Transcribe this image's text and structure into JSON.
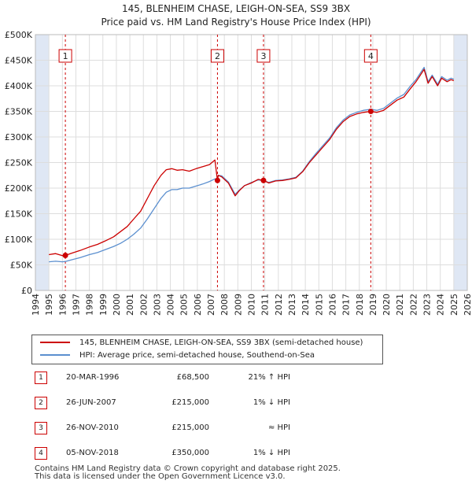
{
  "title_line1": "145, BLENHEIM CHASE, LEIGH-ON-SEA, SS9 3BX",
  "title_line2": "Price paid vs. HM Land Registry's House Price Index (HPI)",
  "legend": {
    "property": "145, BLENHEIM CHASE, LEIGH-ON-SEA, SS9 3BX (semi-detached house)",
    "hpi": "HPI: Average price, semi-detached house, Southend-on-Sea"
  },
  "colors": {
    "property": "#cc0000",
    "hpi": "#5b8fcf",
    "grid": "#dddddd",
    "shade": "#dfe7f4",
    "marker_line": "#cc0000"
  },
  "sales": [
    {
      "num": "1",
      "date": "20-MAR-1996",
      "price": "£68,500",
      "hpi": "21% ↑ HPI"
    },
    {
      "num": "2",
      "date": "26-JUN-2007",
      "price": "£215,000",
      "hpi": "1% ↓ HPI"
    },
    {
      "num": "3",
      "date": "26-NOV-2010",
      "price": "£215,000",
      "hpi": "≈ HPI"
    },
    {
      "num": "4",
      "date": "05-NOV-2018",
      "price": "£350,000",
      "hpi": "1% ↓ HPI"
    }
  ],
  "footer_line1": "Contains HM Land Registry data © Crown copyright and database right 2025.",
  "footer_line2": "This data is licensed under the Open Government Licence v3.0.",
  "chart_data": {
    "type": "line",
    "title": "145, BLENHEIM CHASE, LEIGH-ON-SEA, SS9 3BX — Price paid vs. HM Land Registry's House Price Index (HPI)",
    "xlabel": "",
    "ylabel": "",
    "xlim": [
      1994,
      2026
    ],
    "ylim": [
      0,
      500000
    ],
    "x_ticks": [
      "1994",
      "1995",
      "1996",
      "1997",
      "1998",
      "1999",
      "2000",
      "2001",
      "2002",
      "2003",
      "2004",
      "2005",
      "2006",
      "2007",
      "2008",
      "2009",
      "2010",
      "2011",
      "2012",
      "2013",
      "2014",
      "2015",
      "2016",
      "2017",
      "2018",
      "2019",
      "2020",
      "2021",
      "2022",
      "2023",
      "2024",
      "2025",
      "2026"
    ],
    "y_ticks": [
      {
        "value": 0,
        "label": "£0"
      },
      {
        "value": 50000,
        "label": "£50K"
      },
      {
        "value": 100000,
        "label": "£100K"
      },
      {
        "value": 150000,
        "label": "£150K"
      },
      {
        "value": 200000,
        "label": "£200K"
      },
      {
        "value": 250000,
        "label": "£250K"
      },
      {
        "value": 300000,
        "label": "£300K"
      },
      {
        "value": 350000,
        "label": "£350K"
      },
      {
        "value": 400000,
        "label": "£400K"
      },
      {
        "value": 450000,
        "label": "£450K"
      },
      {
        "value": 500000,
        "label": "£500K"
      }
    ],
    "grid": true,
    "shaded_ranges": [
      [
        1994,
        1995.0
      ],
      [
        2025.0,
        2026
      ]
    ],
    "sale_markers": [
      {
        "label": "1",
        "x": 1996.22,
        "y": 68500
      },
      {
        "label": "2",
        "x": 2007.49,
        "y": 215000
      },
      {
        "label": "3",
        "x": 2010.9,
        "y": 215000
      },
      {
        "label": "4",
        "x": 2018.85,
        "y": 350000
      }
    ],
    "series": [
      {
        "name": "145, BLENHEIM CHASE, LEIGH-ON-SEA, SS9 3BX (semi-detached house)",
        "color": "#cc0000",
        "x": [
          1995.0,
          1995.5,
          1996.0,
          1996.22,
          1996.7,
          1997.3,
          1998.0,
          1998.6,
          1999.2,
          1999.8,
          2000.3,
          2000.8,
          2001.3,
          2001.8,
          2002.3,
          2002.8,
          2003.3,
          2003.7,
          2004.1,
          2004.5,
          2004.9,
          2005.4,
          2005.9,
          2006.4,
          2006.9,
          2007.3,
          2007.49,
          2007.55,
          2007.8,
          2008.3,
          2008.8,
          2009.1,
          2009.5,
          2010.0,
          2010.5,
          2010.9,
          2011.3,
          2011.8,
          2012.3,
          2012.8,
          2013.3,
          2013.8,
          2014.3,
          2014.8,
          2015.3,
          2015.8,
          2016.3,
          2016.8,
          2017.3,
          2017.8,
          2018.3,
          2018.85,
          2019.3,
          2019.8,
          2020.3,
          2020.8,
          2021.3,
          2021.8,
          2022.2,
          2022.5,
          2022.8,
          2023.1,
          2023.4,
          2023.8,
          2024.1,
          2024.5,
          2024.8,
          2025.0
        ],
        "values": [
          70000,
          72000,
          68000,
          68500,
          73000,
          78000,
          85000,
          90000,
          97000,
          105000,
          115000,
          125000,
          140000,
          155000,
          180000,
          205000,
          225000,
          236000,
          238000,
          235000,
          236000,
          233000,
          238000,
          242000,
          246000,
          255000,
          215000,
          225000,
          222000,
          210000,
          185000,
          195000,
          205000,
          210000,
          217000,
          215000,
          210000,
          214000,
          215000,
          217000,
          220000,
          232000,
          250000,
          265000,
          280000,
          295000,
          315000,
          330000,
          340000,
          345000,
          348000,
          350000,
          348000,
          352000,
          362000,
          372000,
          378000,
          395000,
          408000,
          420000,
          432000,
          405000,
          418000,
          400000,
          415000,
          408000,
          412000,
          410000
        ]
      },
      {
        "name": "HPI: Average price, semi-detached house, Southend-on-Sea",
        "color": "#5b8fcf",
        "x": [
          1995.0,
          1995.5,
          1996.0,
          1996.22,
          1996.7,
          1997.3,
          1998.0,
          1998.6,
          1999.2,
          1999.8,
          2000.3,
          2000.8,
          2001.3,
          2001.8,
          2002.3,
          2002.8,
          2003.3,
          2003.7,
          2004.1,
          2004.5,
          2004.9,
          2005.4,
          2005.9,
          2006.4,
          2006.9,
          2007.3,
          2007.49,
          2007.55,
          2007.8,
          2008.3,
          2008.8,
          2009.1,
          2009.5,
          2010.0,
          2010.5,
          2010.9,
          2011.3,
          2011.8,
          2012.3,
          2012.8,
          2013.3,
          2013.8,
          2014.3,
          2014.8,
          2015.3,
          2015.8,
          2016.3,
          2016.8,
          2017.3,
          2017.8,
          2018.3,
          2018.85,
          2019.3,
          2019.8,
          2020.3,
          2020.8,
          2021.3,
          2021.8,
          2022.2,
          2022.5,
          2022.8,
          2023.1,
          2023.4,
          2023.8,
          2024.1,
          2024.5,
          2024.8,
          2025.0
        ],
        "values": [
          56000,
          57000,
          56000,
          56600,
          60000,
          64000,
          70000,
          74000,
          80000,
          86000,
          92000,
          100000,
          110000,
          122000,
          140000,
          160000,
          180000,
          192000,
          197000,
          197000,
          200000,
          200000,
          204000,
          208000,
          213000,
          218000,
          217000,
          225000,
          224000,
          212000,
          188000,
          196000,
          205000,
          211000,
          216000,
          215000,
          211000,
          215000,
          216000,
          218000,
          221000,
          233000,
          252000,
          268000,
          283000,
          298000,
          318000,
          333000,
          343000,
          348000,
          352000,
          354000,
          352000,
          356000,
          366000,
          376000,
          383000,
          400000,
          412000,
          424000,
          436000,
          408000,
          421000,
          403000,
          418000,
          411000,
          415000,
          413000
        ]
      }
    ]
  }
}
